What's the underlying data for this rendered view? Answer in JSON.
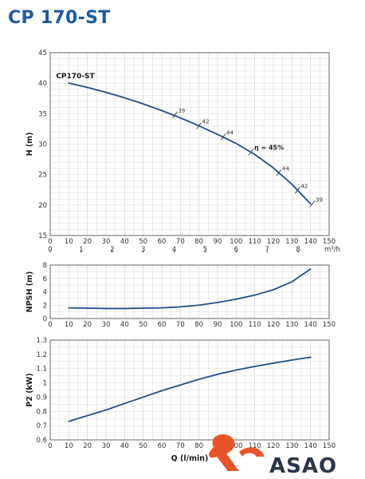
{
  "title": "CP 170-ST",
  "colors": {
    "title": "#1e5aa0",
    "curve": "#1f4e8c",
    "grid": "#d0d0d0",
    "frame": "#555555",
    "logo_accent": "#e8542a",
    "logo_text": "#2a3548"
  },
  "logo": {
    "text": "ASAO",
    "icon": "swirl-icon"
  },
  "chart_data": [
    {
      "type": "line",
      "ylabel": "H (m)",
      "xlim": [
        0,
        150
      ],
      "ylim": [
        15,
        45
      ],
      "x_ticks": [
        0,
        10,
        20,
        30,
        40,
        50,
        60,
        70,
        80,
        90,
        100,
        110,
        120,
        130,
        140,
        150
      ],
      "y_ticks": [
        15,
        20,
        25,
        30,
        35,
        40,
        45
      ],
      "grid": true,
      "secondary_x": {
        "unit": "m³/h",
        "max": 9,
        "ticks": [
          0,
          1,
          2,
          3,
          4,
          5,
          6,
          7,
          8
        ]
      },
      "curve_label": "CP170-ST",
      "series": [
        {
          "x": [
            10,
            20,
            30,
            40,
            50,
            60,
            70,
            80,
            90,
            100,
            110,
            120,
            130,
            140
          ],
          "y": [
            40,
            39.3,
            38.5,
            37.6,
            36.6,
            35.5,
            34.3,
            33.0,
            31.6,
            30.1,
            28.3,
            26.1,
            23.4,
            20.2
          ]
        }
      ],
      "annotations": [
        {
          "x": 67,
          "y": 34.8,
          "label": "39"
        },
        {
          "x": 80,
          "y": 33.0,
          "label": "42"
        },
        {
          "x": 93,
          "y": 31.2,
          "label": "44"
        },
        {
          "x": 108,
          "y": 28.7,
          "label": "η = 45%",
          "bold": true
        },
        {
          "x": 123,
          "y": 25.3,
          "label": "44"
        },
        {
          "x": 133,
          "y": 22.4,
          "label": "42"
        },
        {
          "x": 141,
          "y": 20.2,
          "label": "39"
        }
      ]
    },
    {
      "type": "line",
      "ylabel": "NPSH (m)",
      "xlim": [
        0,
        150
      ],
      "ylim": [
        0,
        8
      ],
      "x_ticks": [
        0,
        10,
        20,
        30,
        40,
        50,
        60,
        70,
        80,
        90,
        100,
        110,
        120,
        130,
        140,
        150
      ],
      "y_ticks": [
        0,
        2,
        4,
        6,
        8
      ],
      "grid": true,
      "series": [
        {
          "x": [
            10,
            20,
            30,
            40,
            50,
            60,
            70,
            80,
            90,
            100,
            110,
            120,
            130,
            140
          ],
          "y": [
            1.6,
            1.55,
            1.5,
            1.5,
            1.55,
            1.6,
            1.75,
            2.0,
            2.4,
            2.9,
            3.5,
            4.3,
            5.5,
            7.4
          ]
        }
      ]
    },
    {
      "type": "line",
      "xlabel": "Q (l/min)",
      "ylabel": "P2 (kW)",
      "xlim": [
        0,
        150
      ],
      "ylim": [
        0.6,
        1.3
      ],
      "x_ticks": [
        0,
        10,
        20,
        30,
        40,
        50,
        60,
        70,
        80,
        90,
        100,
        110,
        120,
        130,
        140,
        150
      ],
      "y_ticks": [
        0.6,
        0.7,
        0.8,
        0.9,
        1.0,
        1.1,
        1.2,
        1.3
      ],
      "grid": true,
      "series": [
        {
          "x": [
            10,
            20,
            30,
            40,
            50,
            60,
            70,
            80,
            90,
            100,
            110,
            120,
            130,
            140
          ],
          "y": [
            0.73,
            0.77,
            0.81,
            0.855,
            0.9,
            0.945,
            0.985,
            1.025,
            1.06,
            1.09,
            1.115,
            1.138,
            1.16,
            1.18
          ]
        }
      ]
    }
  ]
}
